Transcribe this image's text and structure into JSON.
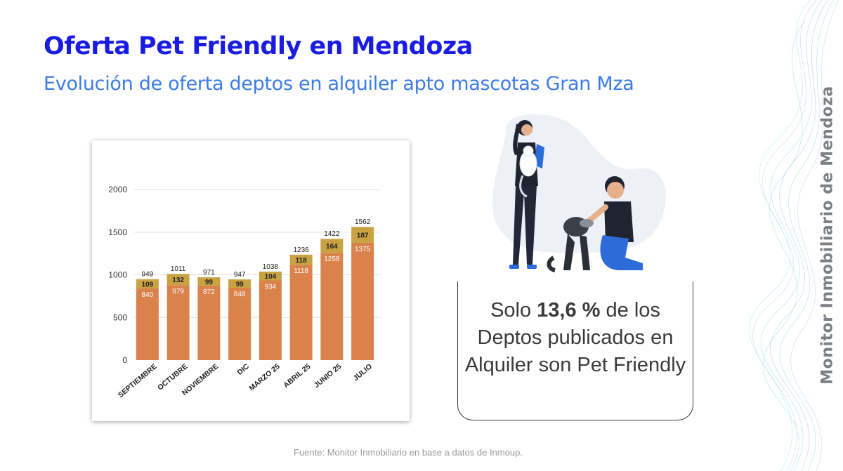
{
  "title": "Oferta Pet Friendly en Mendoza",
  "subtitle": "Evolución de oferta deptos en alquiler apto mascotas Gran Mza",
  "side_brand": "Monitor Inmobiliario de Mendoza",
  "callout": {
    "pre": "Solo ",
    "highlight": "13,6 %",
    "post": " de los Deptos publicados en Alquiler son Pet Friendly"
  },
  "source": "Fuente: Monitor Inmobiliario en base a datos de Inmoup.",
  "colors": {
    "title": "#1a1de0",
    "subtitle": "#3d7be8",
    "bar_base": "#d9824c",
    "bar_top": "#c8a243",
    "grid": "#dddddd"
  },
  "chart_data": {
    "type": "bar",
    "stacked": true,
    "categories": [
      "SEPTIEMBRE",
      "OCTUBRE",
      "NOVIEMBRE",
      "DIC",
      "MARZO 25",
      "ABRIL 25",
      "JUNIO 25",
      "JULIO"
    ],
    "series": [
      {
        "values": [
          840,
          879,
          872,
          848,
          934,
          1118,
          1258,
          1375
        ],
        "color": "#d9824c"
      },
      {
        "values": [
          109,
          132,
          99,
          99,
          104,
          118,
          164,
          187
        ],
        "color": "#c8a243"
      }
    ],
    "totals": [
      949,
      1011,
      971,
      947,
      1038,
      1236,
      1422,
      1562
    ],
    "y_ticks": [
      0,
      500,
      1000,
      1500,
      2000
    ],
    "ylim": [
      0,
      2000
    ],
    "grid": true
  }
}
